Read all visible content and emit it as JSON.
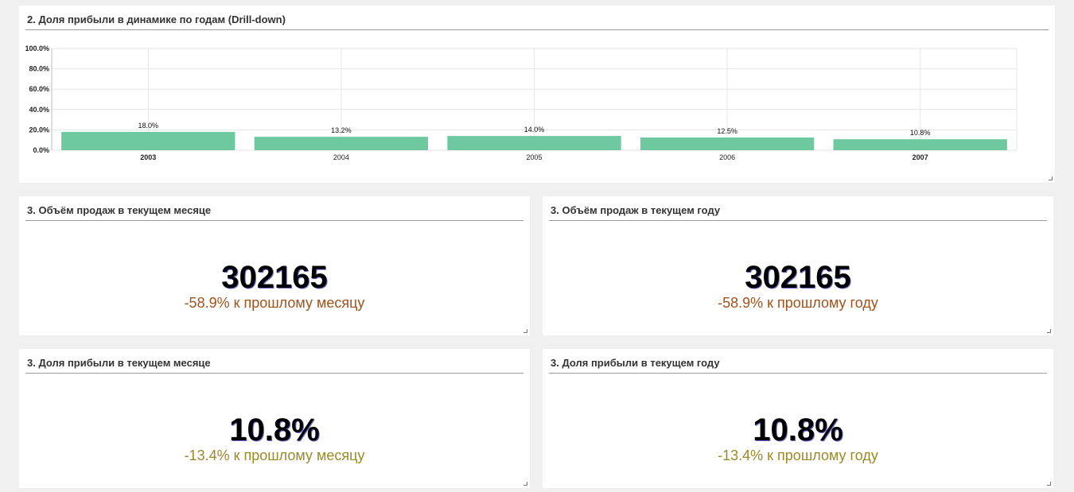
{
  "chart_panel": {
    "title": "2. Доля прибыли в динамике по годам (Drill-down)"
  },
  "chart_data": {
    "type": "bar",
    "title": "2. Доля прибыли в динамике по годам (Drill-down)",
    "categories": [
      "2003",
      "2004",
      "2005",
      "2006",
      "2007"
    ],
    "values": [
      18.0,
      13.2,
      14.0,
      12.5,
      10.8
    ],
    "data_labels": [
      "18.0%",
      "13.2%",
      "14.0%",
      "12.5%",
      "10.8%"
    ],
    "y_ticks": [
      "100.0%",
      "80.0%",
      "60.0%",
      "40.0%",
      "20.0%",
      "0.0%"
    ],
    "ylim": [
      0,
      100
    ],
    "bar_color": "#6fc9a0",
    "grid": true,
    "bold_categories": [
      "2003",
      "2007"
    ]
  },
  "kpis": {
    "sales_month": {
      "title": "3. Объём продаж в текущем месяце",
      "value": "302165",
      "delta": "-58.9% к прошлому месяцу",
      "delta_color": "#a0521d"
    },
    "sales_year": {
      "title": "3. Объём продаж в текущем году",
      "value": "302165",
      "delta": "-58.9% к прошлому году",
      "delta_color": "#a0521d"
    },
    "profit_month": {
      "title": "3. Доля прибыли в текущем месяце",
      "value": "10.8%",
      "delta": "-13.4% к прошлому месяцу",
      "delta_color": "#9a8a2a"
    },
    "profit_year": {
      "title": "3. Доля прибыли в текущем году",
      "value": "10.8%",
      "delta": "-13.4% к прошлому году",
      "delta_color": "#9a8a2a"
    }
  }
}
